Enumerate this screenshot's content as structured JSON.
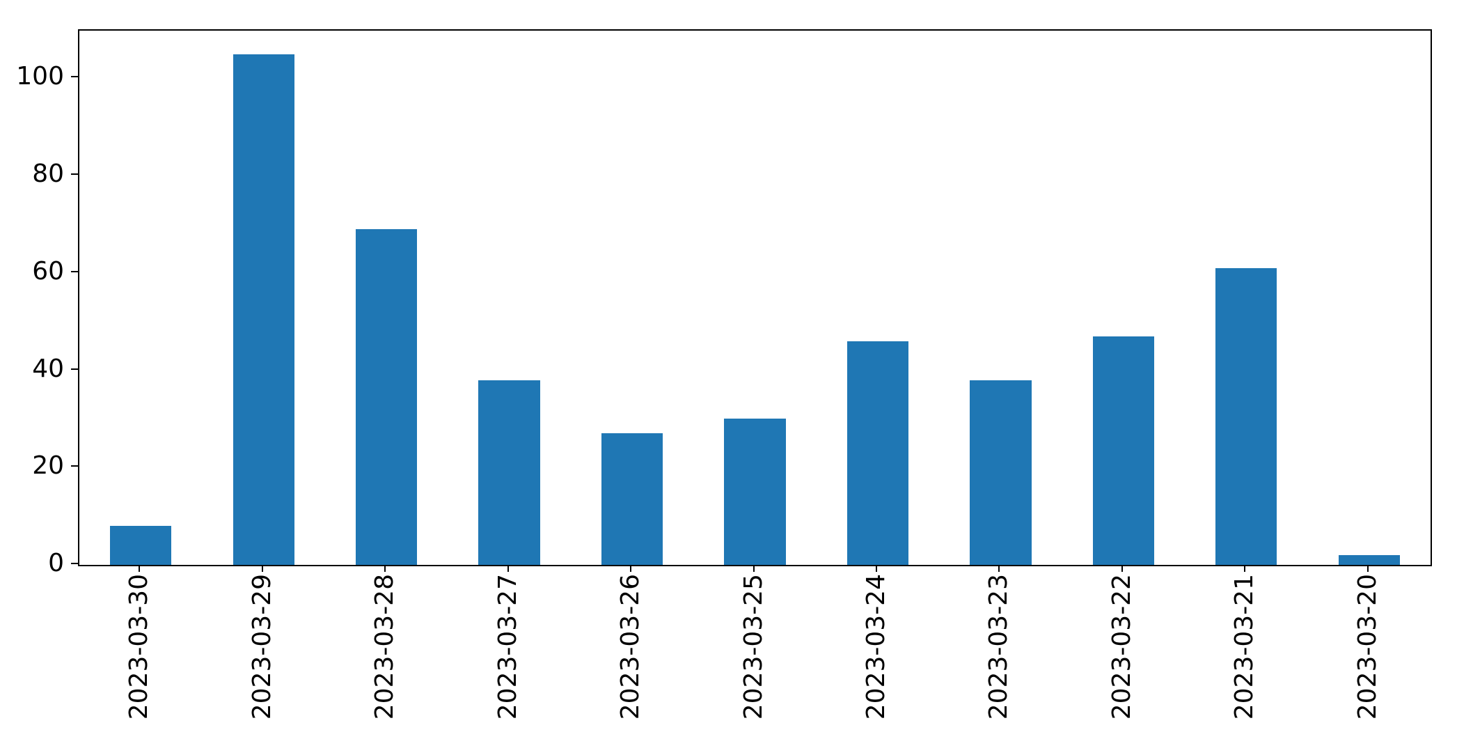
{
  "chart_data": {
    "type": "bar",
    "title": "",
    "xlabel": "",
    "ylabel": "",
    "categories": [
      "2023-03-30",
      "2023-03-29",
      "2023-03-28",
      "2023-03-27",
      "2023-03-26",
      "2023-03-25",
      "2023-03-24",
      "2023-03-23",
      "2023-03-22",
      "2023-03-21",
      "2023-03-20"
    ],
    "values": [
      8,
      105,
      69,
      38,
      27,
      30,
      46,
      38,
      47,
      61,
      2
    ],
    "yticks": [
      0,
      20,
      40,
      60,
      80,
      100
    ],
    "ylim": [
      0,
      109.8
    ],
    "bar_color": "#1f77b4",
    "bar_width_fraction": 0.5,
    "x_tick_label_rotation": 90,
    "grid": false,
    "legend": false
  }
}
